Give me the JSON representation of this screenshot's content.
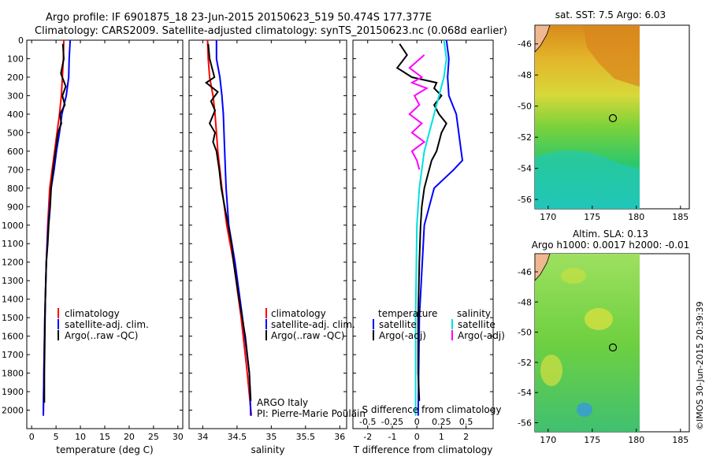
{
  "header": {
    "line1": "Argo profile: IF 6901875_18 23-Jun-2015 20150623_519 50.474S 177.377E",
    "line2": "Climatology: CARS2009. Satellite-adjusted climatology: synTS_20150623.nc (0.068d earlier)"
  },
  "vertical_stamp": "©IMOS 30-Jun-2015 20:39:39",
  "colors": {
    "climatology": "#ff0000",
    "satellite": "#0000ff",
    "argo": "#000000",
    "sat_salinity": "#00e0e0",
    "argo_salinity_diff": "#ff00ff"
  },
  "legends": {
    "temperature_panel": [
      "climatology",
      "satellite-adj. clim.",
      "Argo(..raw -QC)"
    ],
    "salinity_panel": [
      "climatology",
      "satellite-adj. clim.",
      "Argo(..raw -QC)"
    ],
    "diff_panel": {
      "col1_title": "temperature",
      "col2_title": "salinity",
      "rows": [
        "satellite",
        "Argo(-adj)"
      ]
    }
  },
  "notes": {
    "argo_italy": "ARGO Italy",
    "pi": "PI: Pierre-Marie Poulain"
  },
  "chart_data": [
    {
      "type": "line",
      "panel": "temperature",
      "xlabel": "temperature (deg C)",
      "xlim": [
        -1,
        31
      ],
      "ylim": [
        2100,
        0
      ],
      "y_inverted": true,
      "xticks": [
        0,
        5,
        10,
        15,
        20,
        25,
        30
      ],
      "yticks": [
        0,
        100,
        200,
        300,
        400,
        500,
        600,
        700,
        800,
        900,
        1000,
        1100,
        1200,
        1300,
        1400,
        1500,
        1600,
        1700,
        1800,
        1900,
        2000
      ],
      "series": [
        {
          "name": "climatology",
          "color": "#ff0000",
          "y": [
            0,
            100,
            200,
            300,
            400,
            500,
            600,
            700,
            800,
            1000,
            1200,
            1500,
            1800,
            2030
          ],
          "x": [
            6.6,
            6.5,
            6.3,
            6.1,
            5.7,
            5.2,
            4.7,
            4.2,
            3.7,
            3.3,
            3.0,
            2.7,
            2.5,
            2.4
          ]
        },
        {
          "name": "satellite-adj. clim.",
          "color": "#0000ff",
          "y": [
            0,
            100,
            200,
            300,
            400,
            500,
            600,
            700,
            800,
            1000,
            1200,
            1500,
            1800,
            2030
          ],
          "x": [
            7.9,
            7.7,
            7.6,
            7.1,
            6.2,
            5.7,
            5.1,
            4.6,
            4.0,
            3.4,
            3.0,
            2.7,
            2.5,
            2.4
          ]
        },
        {
          "name": "Argo(..raw -QC)",
          "color": "#000000",
          "y": [
            20,
            100,
            180,
            250,
            300,
            350,
            400,
            450,
            500,
            600,
            700,
            800,
            900,
            1000,
            1100,
            1200,
            1400,
            1600,
            1800,
            1960
          ],
          "x": [
            6.4,
            6.6,
            6.0,
            7.0,
            6.3,
            6.8,
            5.8,
            6.1,
            5.4,
            4.9,
            4.4,
            4.0,
            3.8,
            3.5,
            3.3,
            3.0,
            2.8,
            2.7,
            2.6,
            2.6
          ]
        }
      ]
    },
    {
      "type": "line",
      "panel": "salinity",
      "xlabel": "salinity",
      "xlim": [
        33.8,
        36.1
      ],
      "ylim": [
        2100,
        0
      ],
      "y_inverted": true,
      "xticks": [
        34,
        34.5,
        35,
        35.5,
        36
      ],
      "series": [
        {
          "name": "climatology",
          "color": "#ff0000",
          "y": [
            0,
            100,
            200,
            300,
            400,
            600,
            800,
            1000,
            1200,
            1500,
            1800,
            2030
          ],
          "x": [
            34.07,
            34.08,
            34.1,
            34.15,
            34.18,
            34.22,
            34.28,
            34.35,
            34.45,
            34.56,
            34.65,
            34.71
          ]
        },
        {
          "name": "satellite-adj. clim.",
          "color": "#0000ff",
          "y": [
            0,
            100,
            200,
            300,
            400,
            600,
            800,
            1000,
            1200,
            1500,
            1800,
            2030
          ],
          "x": [
            34.2,
            34.2,
            34.25,
            34.28,
            34.3,
            34.32,
            34.34,
            34.38,
            34.47,
            34.58,
            34.68,
            34.7
          ]
        },
        {
          "name": "Argo(..raw -QC)",
          "color": "#000000",
          "y": [
            20,
            100,
            200,
            230,
            280,
            330,
            380,
            450,
            500,
            550,
            600,
            700,
            800,
            900,
            1000,
            1100,
            1200,
            1400,
            1600,
            1800,
            1950
          ],
          "x": [
            34.08,
            34.1,
            34.17,
            34.05,
            34.22,
            34.12,
            34.18,
            34.1,
            34.18,
            34.15,
            34.2,
            34.24,
            34.27,
            34.32,
            34.37,
            34.42,
            34.45,
            34.53,
            34.62,
            34.68,
            34.7
          ]
        }
      ]
    },
    {
      "type": "line",
      "panel": "difference",
      "xlabel": "T difference from climatology",
      "top_xlabel": "S difference from climatology",
      "xlim": [
        -2.6,
        3.1
      ],
      "ylim": [
        2100,
        0
      ],
      "y_inverted": true,
      "xticks": [
        -2,
        -1,
        0,
        1,
        2
      ],
      "top_xticks": [
        -0.5,
        -0.25,
        0,
        0.25,
        0.5
      ],
      "top_xtick_labels": [
        "-0.5",
        "-0.25",
        "0",
        "0.25",
        "0.5"
      ],
      "series": [
        {
          "name": "satellite (temperature)",
          "color": "#0000ff",
          "y": [
            0,
            100,
            200,
            300,
            400,
            500,
            600,
            650,
            700,
            800,
            1000,
            1500,
            2030
          ],
          "x": [
            1.2,
            1.3,
            1.25,
            1.3,
            1.6,
            1.7,
            1.8,
            1.85,
            1.5,
            0.7,
            0.3,
            0.1,
            0.05
          ]
        },
        {
          "name": "Argo(-adj) (temperature)",
          "color": "#000000",
          "y": [
            20,
            80,
            150,
            200,
            230,
            260,
            300,
            350,
            400,
            450,
            500,
            550,
            600,
            650,
            700,
            800,
            900,
            1000,
            1200,
            1500,
            1800,
            1950
          ],
          "x": [
            -0.7,
            -0.4,
            -0.8,
            -0.2,
            0.8,
            0.7,
            1.0,
            0.7,
            0.9,
            1.2,
            1.0,
            0.9,
            0.8,
            0.6,
            0.5,
            0.3,
            0.2,
            0.15,
            0.1,
            0.05,
            0.05,
            0.1
          ]
        },
        {
          "name": "satellite (salinity)",
          "color": "#00e0e0",
          "y": [
            0,
            100,
            200,
            300,
            400,
            500,
            600,
            700,
            800,
            1000,
            1500,
            2030
          ],
          "x": [
            1.1,
            1.2,
            1.1,
            0.9,
            0.7,
            0.5,
            0.3,
            0.2,
            0.1,
            0.0,
            -0.05,
            -0.05
          ]
        },
        {
          "name": "Argo(-adj) (salinity)",
          "color": "#ff00ff",
          "y": [
            80,
            150,
            200,
            230,
            260,
            300,
            350,
            400,
            450,
            500,
            550,
            600,
            650,
            700
          ],
          "x": [
            0.3,
            -0.3,
            0.2,
            -0.2,
            0.4,
            -0.1,
            0.1,
            -0.3,
            0.2,
            -0.2,
            0.3,
            -0.2,
            0.0,
            0.1
          ]
        }
      ]
    },
    {
      "type": "heatmap",
      "panel": "sst_map",
      "title": "sat. SST: 7.5 Argo: 6.03",
      "xticks": [
        170,
        175,
        180,
        185
      ],
      "yticks": [
        -46,
        -48,
        -50,
        -52,
        -54,
        -56
      ],
      "xlim": [
        168.5,
        186
      ],
      "ylim": [
        -56.6,
        -44.8
      ],
      "argo_position": [
        177.377,
        -50.474
      ]
    },
    {
      "type": "heatmap",
      "panel": "sla_map",
      "title": "Altim. SLA: 0.13",
      "subtitle": "Argo h1000: 0.0017 h2000: -0.01",
      "xticks": [
        170,
        175,
        180,
        185
      ],
      "yticks": [
        -46,
        -48,
        -50,
        -52,
        -54,
        -56
      ],
      "xlim": [
        168.5,
        186
      ],
      "ylim": [
        -56.6,
        -44.8
      ],
      "argo_position": [
        177.377,
        -50.474
      ]
    }
  ]
}
